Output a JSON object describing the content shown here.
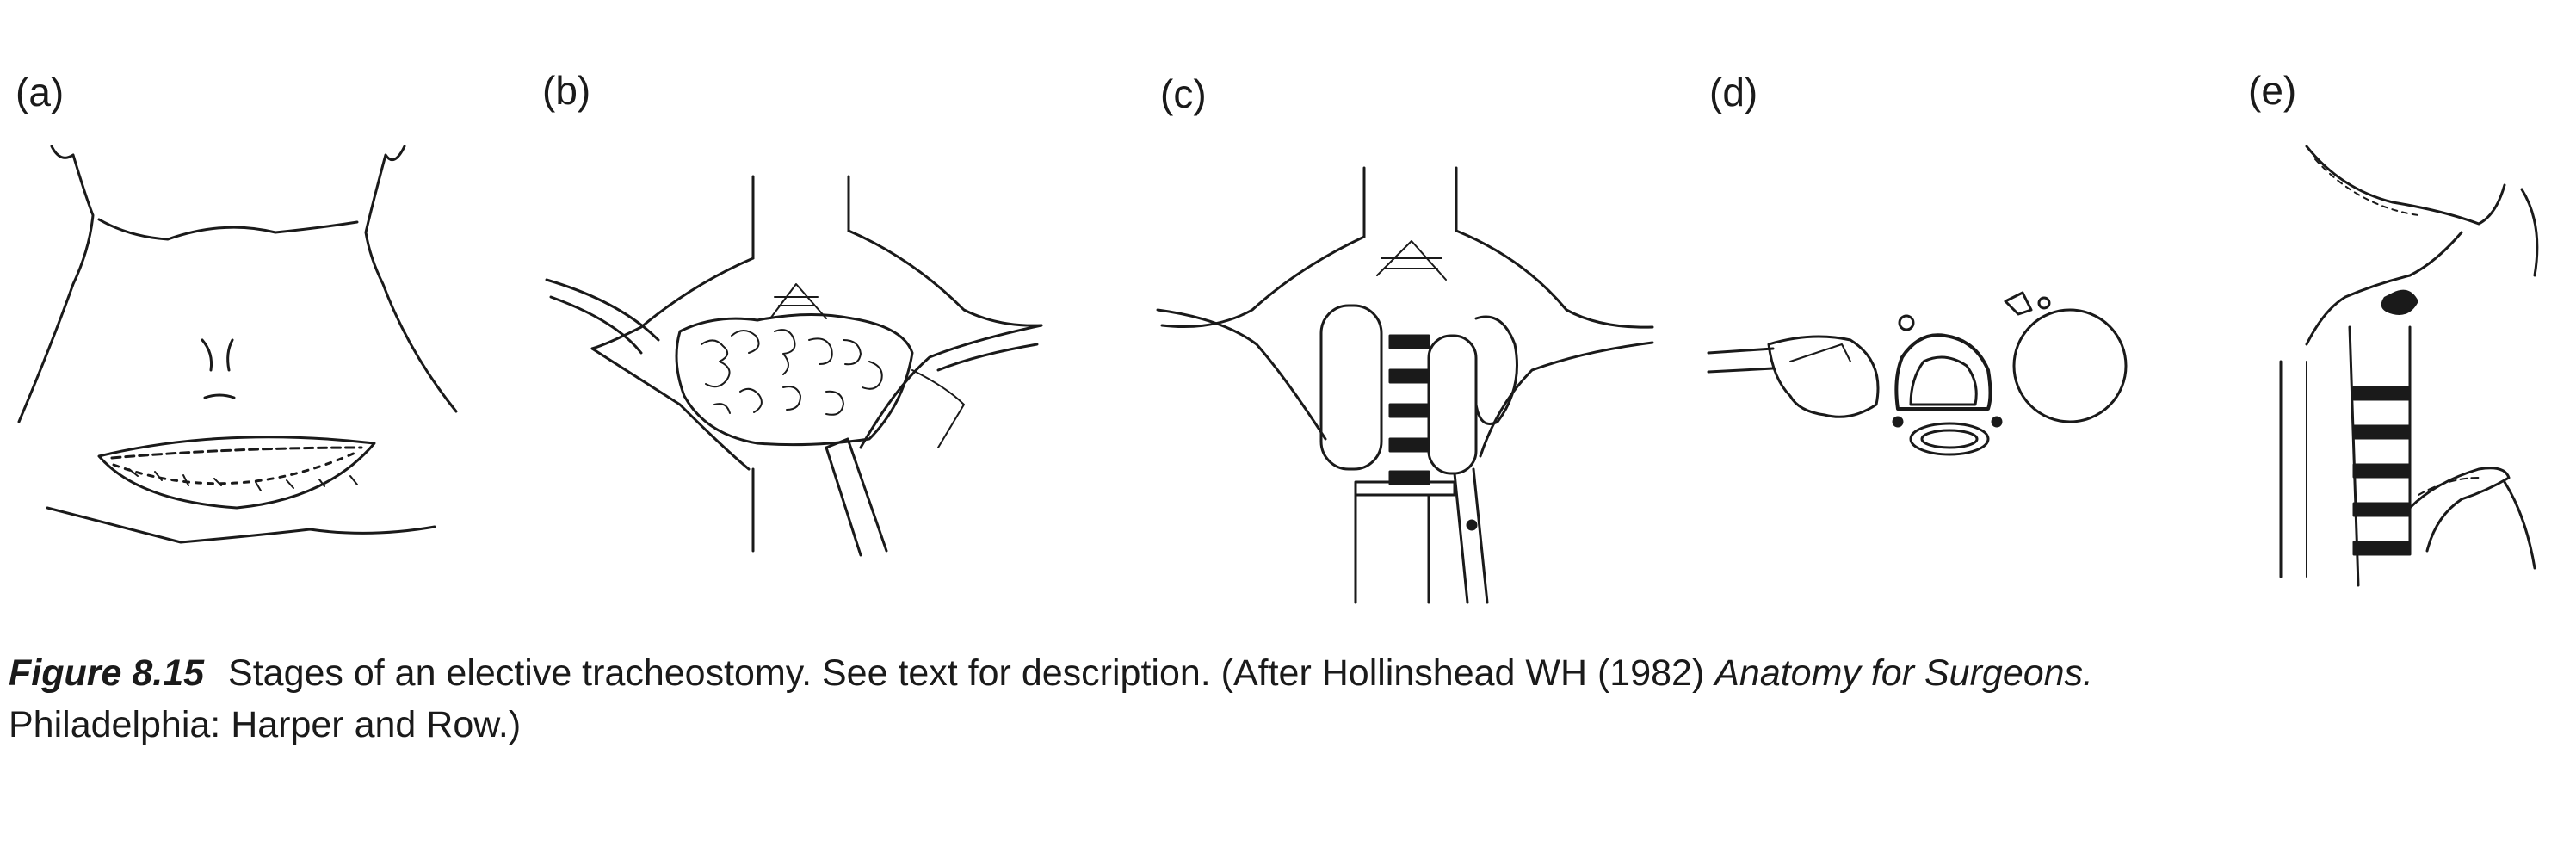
{
  "panels": [
    {
      "label": "(a)"
    },
    {
      "label": "(b)"
    },
    {
      "label": "(c)"
    },
    {
      "label": "(d)"
    },
    {
      "label": "(e)"
    }
  ],
  "caption": {
    "figure_number": "Figure 8.15",
    "text": "Stages of an elective tracheostomy. See text for description. (After Hollinshead WH (1982) ",
    "book_title": "Anatomy for Surgeons.",
    "text_line2": "Philadelphia: Harper and Row.)"
  }
}
